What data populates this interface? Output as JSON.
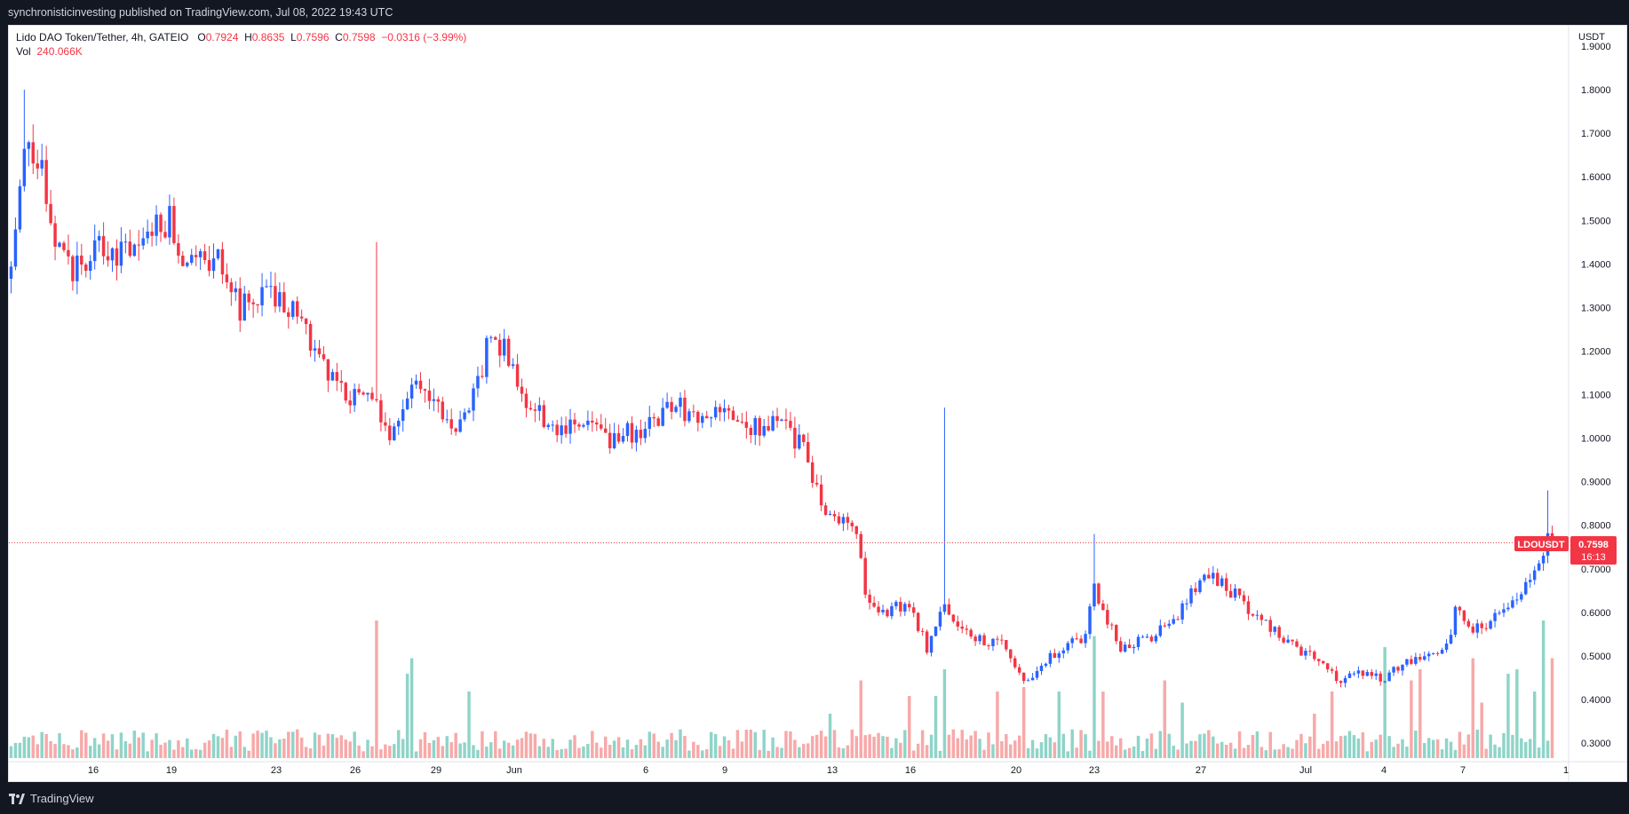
{
  "header": {
    "published": "synchronisticinvesting published on TradingView.com, Jul 08, 2022 19:43 UTC"
  },
  "legend": {
    "symbol": "Lido DAO Token/Tether, 4h, GATEIO",
    "o_label": "O",
    "o_value": "0.7924",
    "h_label": "H",
    "h_value": "0.8635",
    "l_label": "L",
    "l_value": "0.7596",
    "c_label": "C",
    "c_value": "0.7598",
    "change": "−0.0316 (−3.99%)",
    "vol_label": "Vol",
    "vol_value": "240.066K"
  },
  "price_tag": {
    "ticker": "LDOUSDT",
    "price": "0.7598",
    "countdown": "16:13"
  },
  "footer": {
    "brand": "TradingView"
  },
  "colors": {
    "up": "#2962ff",
    "down": "#f23645",
    "vol_up": "#8fd4c8",
    "vol_down": "#f7a9a9",
    "background": "#ffffff",
    "frame": "#131722"
  },
  "chart_data": {
    "type": "candlestick",
    "title": "Lido DAO Token/Tether, 4h, GATEIO",
    "currency": "USDT",
    "ylim": [
      0.26,
      1.96
    ],
    "y_ticks": [
      "1.9000",
      "1.8000",
      "1.7000",
      "1.6000",
      "1.5000",
      "1.4000",
      "1.3000",
      "1.2000",
      "1.1000",
      "1.0000",
      "0.9000",
      "0.8000",
      "0.7000",
      "0.6000",
      "0.5000",
      "0.4000",
      "0.3000"
    ],
    "x_ticks": [
      "16",
      "19",
      "23",
      "26",
      "29",
      "Jun",
      "6",
      "9",
      "13",
      "16",
      "20",
      "23",
      "27",
      "Jul",
      "4",
      "7",
      "1"
    ],
    "last_price": 0.7598,
    "series": [
      {
        "name": "OHLC",
        "keypoints": [
          [
            0,
            1.4
          ],
          [
            3,
            1.7
          ],
          [
            7,
            1.62
          ],
          [
            10,
            1.45
          ],
          [
            14,
            1.38
          ],
          [
            20,
            1.45
          ],
          [
            26,
            1.42
          ],
          [
            32,
            1.48
          ],
          [
            36,
            1.5
          ],
          [
            40,
            1.4
          ],
          [
            48,
            1.4
          ],
          [
            52,
            1.3
          ],
          [
            58,
            1.32
          ],
          [
            64,
            1.3
          ],
          [
            70,
            1.18
          ],
          [
            76,
            1.1
          ],
          [
            82,
            1.08
          ],
          [
            86,
            1.02
          ],
          [
            88,
            1.05
          ],
          [
            92,
            1.12
          ],
          [
            96,
            1.1
          ],
          [
            100,
            1.02
          ],
          [
            104,
            1.05
          ],
          [
            108,
            1.2
          ],
          [
            112,
            1.22
          ],
          [
            116,
            1.1
          ],
          [
            120,
            1.05
          ],
          [
            124,
            1.02
          ],
          [
            130,
            1.02
          ],
          [
            136,
            1.0
          ],
          [
            144,
            1.02
          ],
          [
            150,
            1.08
          ],
          [
            156,
            1.04
          ],
          [
            162,
            1.06
          ],
          [
            168,
            1.02
          ],
          [
            174,
            1.04
          ],
          [
            178,
            1.0
          ],
          [
            180,
            0.98
          ],
          [
            184,
            0.85
          ],
          [
            188,
            0.82
          ],
          [
            192,
            0.78
          ],
          [
            194,
            0.65
          ],
          [
            198,
            0.6
          ],
          [
            204,
            0.62
          ],
          [
            208,
            0.52
          ],
          [
            212,
            0.62
          ],
          [
            216,
            0.56
          ],
          [
            220,
            0.54
          ],
          [
            226,
            0.52
          ],
          [
            230,
            0.44
          ],
          [
            236,
            0.5
          ],
          [
            240,
            0.52
          ],
          [
            244,
            0.55
          ],
          [
            246,
            0.65
          ],
          [
            248,
            0.6
          ],
          [
            252,
            0.52
          ],
          [
            260,
            0.55
          ],
          [
            264,
            0.58
          ],
          [
            268,
            0.65
          ],
          [
            272,
            0.68
          ],
          [
            276,
            0.66
          ],
          [
            280,
            0.62
          ],
          [
            286,
            0.56
          ],
          [
            292,
            0.52
          ],
          [
            298,
            0.48
          ],
          [
            302,
            0.44
          ],
          [
            306,
            0.46
          ],
          [
            312,
            0.45
          ],
          [
            316,
            0.48
          ],
          [
            320,
            0.5
          ],
          [
            326,
            0.52
          ],
          [
            328,
            0.6
          ],
          [
            332,
            0.56
          ],
          [
            336,
            0.58
          ],
          [
            340,
            0.6
          ],
          [
            344,
            0.66
          ],
          [
            346,
            0.68
          ],
          [
            348,
            0.72
          ],
          [
            349,
            0.8
          ],
          [
            350,
            0.76
          ]
        ]
      },
      {
        "name": "Vol",
        "volume_spikes": [
          [
            83,
            0.62
          ],
          [
            91,
            0.45
          ],
          [
            90,
            0.38
          ],
          [
            104,
            0.3
          ],
          [
            186,
            0.2
          ],
          [
            193,
            0.35
          ],
          [
            204,
            0.28
          ],
          [
            210,
            0.28
          ],
          [
            212,
            0.4
          ],
          [
            224,
            0.3
          ],
          [
            230,
            0.32
          ],
          [
            238,
            0.3
          ],
          [
            246,
            0.55
          ],
          [
            248,
            0.3
          ],
          [
            262,
            0.35
          ],
          [
            266,
            0.25
          ],
          [
            296,
            0.2
          ],
          [
            300,
            0.3
          ],
          [
            312,
            0.5
          ],
          [
            318,
            0.35
          ],
          [
            320,
            0.4
          ],
          [
            332,
            0.45
          ],
          [
            334,
            0.25
          ],
          [
            340,
            0.38
          ],
          [
            342,
            0.4
          ],
          [
            346,
            0.3
          ],
          [
            348,
            0.62
          ],
          [
            350,
            0.45
          ]
        ]
      }
    ]
  }
}
